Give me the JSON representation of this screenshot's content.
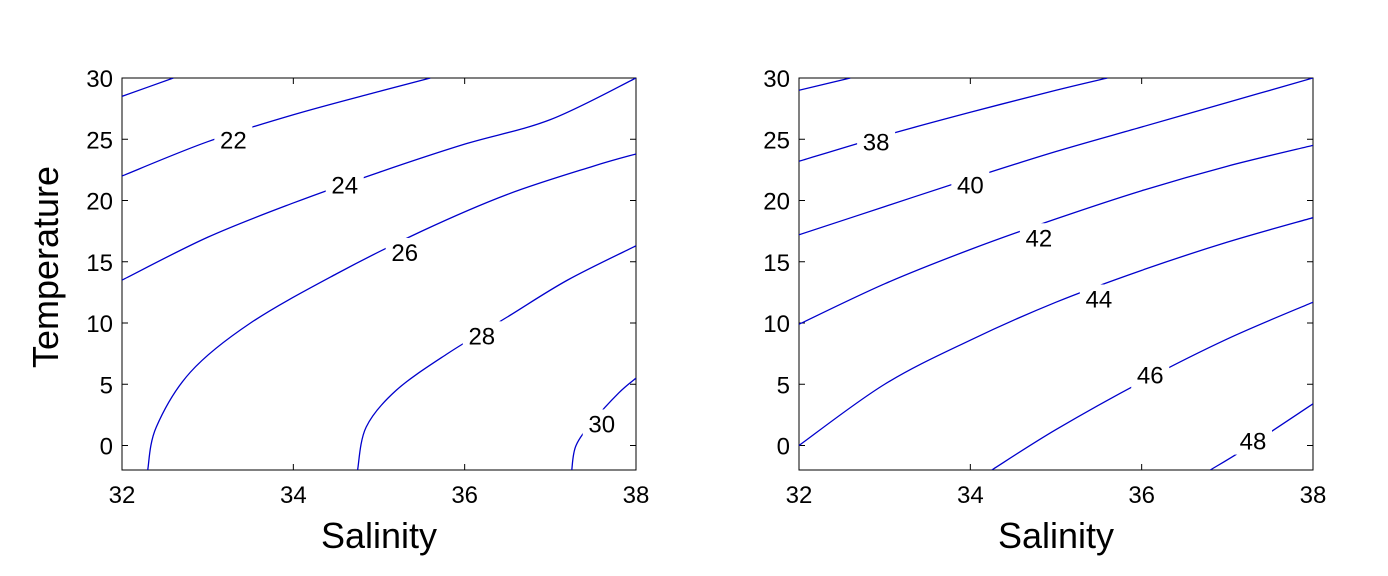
{
  "chart_data": [
    {
      "type": "contour",
      "xlabel": "Salinity",
      "ylabel": "Temperature",
      "xlim": [
        32,
        38
      ],
      "ylim": [
        -2,
        30
      ],
      "xticks": [
        32,
        34,
        36,
        38
      ],
      "yticks": [
        0,
        5,
        10,
        15,
        20,
        25,
        30
      ],
      "line_color": "#0000cc",
      "contours": [
        {
          "level": "",
          "points": [
            [
              32.0,
              28.5
            ],
            [
              32.6,
              30.0
            ]
          ]
        },
        {
          "level": "22",
          "label_at": [
            33.3,
            25.0
          ],
          "points": [
            [
              32.0,
              22.0
            ],
            [
              33.0,
              24.8
            ],
            [
              34.0,
              27.0
            ],
            [
              35.0,
              28.9
            ],
            [
              35.6,
              30.0
            ]
          ]
        },
        {
          "level": "24",
          "label_at": [
            34.6,
            21.3
          ],
          "points": [
            [
              32.0,
              13.5
            ],
            [
              33.0,
              17.0
            ],
            [
              34.0,
              19.8
            ],
            [
              35.0,
              22.3
            ],
            [
              36.0,
              24.6
            ],
            [
              37.0,
              26.6
            ],
            [
              38.0,
              30.0
            ]
          ]
        },
        {
          "level": "26",
          "label_at": [
            35.3,
            15.8
          ],
          "points": [
            [
              32.3,
              -2.0
            ],
            [
              32.4,
              1.5
            ],
            [
              32.8,
              6.0
            ],
            [
              33.5,
              10.0
            ],
            [
              34.5,
              14.0
            ],
            [
              35.5,
              17.5
            ],
            [
              36.5,
              20.5
            ],
            [
              37.5,
              22.8
            ],
            [
              38.0,
              23.8
            ]
          ]
        },
        {
          "level": "28",
          "label_at": [
            36.2,
            9.0
          ],
          "points": [
            [
              34.75,
              -2.0
            ],
            [
              34.85,
              1.5
            ],
            [
              35.2,
              4.5
            ],
            [
              35.8,
              7.5
            ],
            [
              36.5,
              10.5
            ],
            [
              37.2,
              13.5
            ],
            [
              38.0,
              16.3
            ]
          ]
        },
        {
          "level": "30",
          "label_at": [
            37.6,
            1.8
          ],
          "points": [
            [
              37.25,
              -2.0
            ],
            [
              37.3,
              0.0
            ],
            [
              37.5,
              2.0
            ],
            [
              37.8,
              4.3
            ],
            [
              38.0,
              5.5
            ]
          ]
        }
      ]
    },
    {
      "type": "contour",
      "xlabel": "Salinity",
      "ylabel": "",
      "xlim": [
        32,
        38
      ],
      "ylim": [
        -2,
        30
      ],
      "xticks": [
        32,
        34,
        36,
        38
      ],
      "yticks": [
        0,
        5,
        10,
        15,
        20,
        25,
        30
      ],
      "line_color": "#0000cc",
      "contours": [
        {
          "level": "",
          "points": [
            [
              32.0,
              29.0
            ],
            [
              32.6,
              30.0
            ]
          ]
        },
        {
          "level": "38",
          "label_at": [
            32.9,
            24.8
          ],
          "points": [
            [
              32.0,
              23.2
            ],
            [
              33.0,
              25.3
            ],
            [
              34.0,
              27.2
            ],
            [
              35.0,
              29.0
            ],
            [
              35.6,
              30.0
            ]
          ]
        },
        {
          "level": "40",
          "label_at": [
            34.0,
            21.3
          ],
          "points": [
            [
              32.0,
              17.2
            ],
            [
              33.0,
              19.5
            ],
            [
              34.0,
              21.8
            ],
            [
              35.0,
              24.0
            ],
            [
              36.0,
              26.0
            ],
            [
              37.0,
              28.0
            ],
            [
              38.0,
              30.0
            ]
          ]
        },
        {
          "level": "42",
          "label_at": [
            34.8,
            17.0
          ],
          "points": [
            [
              32.0,
              9.9
            ],
            [
              33.0,
              13.2
            ],
            [
              34.0,
              16.0
            ],
            [
              35.0,
              18.5
            ],
            [
              36.0,
              20.8
            ],
            [
              37.0,
              22.8
            ],
            [
              38.0,
              24.5
            ]
          ]
        },
        {
          "level": "44",
          "label_at": [
            35.5,
            12.0
          ],
          "points": [
            [
              32.0,
              0.0
            ],
            [
              33.0,
              5.0
            ],
            [
              34.0,
              8.6
            ],
            [
              35.0,
              11.7
            ],
            [
              36.0,
              14.3
            ],
            [
              37.0,
              16.6
            ],
            [
              38.0,
              18.6
            ]
          ]
        },
        {
          "level": "46",
          "label_at": [
            36.1,
            5.8
          ],
          "points": [
            [
              34.25,
              -2.0
            ],
            [
              35.0,
              1.3
            ],
            [
              36.0,
              5.2
            ],
            [
              37.0,
              8.7
            ],
            [
              38.0,
              11.7
            ]
          ]
        },
        {
          "level": "48",
          "label_at": [
            37.3,
            0.4
          ],
          "points": [
            [
              36.8,
              -2.0
            ],
            [
              37.2,
              -0.3
            ],
            [
              38.0,
              3.4
            ]
          ]
        }
      ]
    }
  ]
}
